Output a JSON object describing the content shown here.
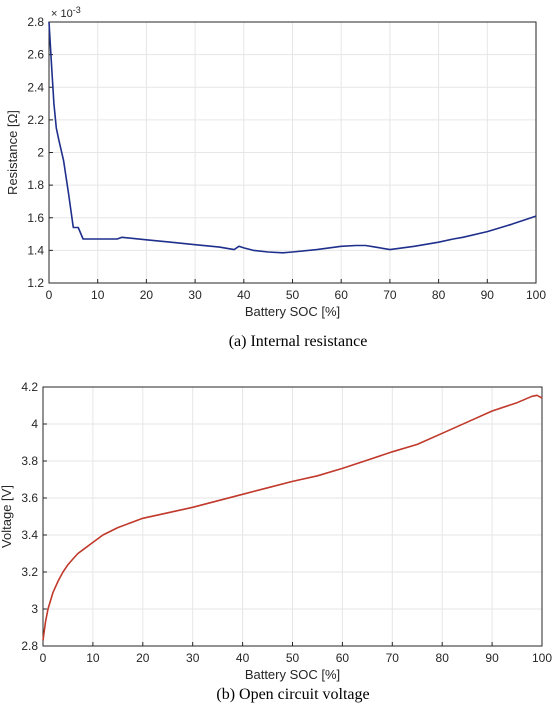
{
  "chart_data": [
    {
      "type": "line",
      "caption": "(a) Internal resistance",
      "xlabel": "Battery SOC [%]",
      "ylabel": "Resistance [Ω]",
      "y_exponent_label": "× 10",
      "y_exponent_power": "-3",
      "xlim": [
        0,
        100
      ],
      "ylim": [
        1.2,
        2.8
      ],
      "x_ticks": [
        0,
        10,
        20,
        30,
        40,
        50,
        60,
        70,
        80,
        90,
        100
      ],
      "y_ticks": [
        1.2,
        1.4,
        1.6,
        1.8,
        2,
        2.2,
        2.4,
        2.6,
        2.8
      ],
      "grid": true,
      "line_color": "#1f2f8c",
      "series": [
        {
          "x": [
            0,
            0.5,
            1,
            1.5,
            2,
            3,
            4,
            5,
            6,
            7,
            10,
            14,
            15,
            20,
            25,
            30,
            35,
            38,
            39,
            40,
            42,
            45,
            48,
            50,
            55,
            60,
            63,
            65,
            67,
            70,
            75,
            80,
            83,
            85,
            90,
            95,
            100
          ],
          "y": [
            2.8,
            2.55,
            2.3,
            2.15,
            2.08,
            1.95,
            1.75,
            1.54,
            1.54,
            1.47,
            1.47,
            1.47,
            1.48,
            1.465,
            1.45,
            1.435,
            1.42,
            1.405,
            1.425,
            1.415,
            1.4,
            1.39,
            1.385,
            1.39,
            1.405,
            1.425,
            1.43,
            1.43,
            1.42,
            1.405,
            1.425,
            1.45,
            1.47,
            1.48,
            1.515,
            1.56,
            1.61
          ]
        }
      ]
    },
    {
      "type": "line",
      "caption": "(b) Open circuit voltage",
      "xlabel": "Battery SOC [%]",
      "ylabel": "Voltage [V]",
      "xlim": [
        0,
        100
      ],
      "ylim": [
        2.8,
        4.2
      ],
      "x_ticks": [
        0,
        10,
        20,
        30,
        40,
        50,
        60,
        70,
        80,
        90,
        100
      ],
      "y_ticks": [
        2.8,
        3,
        3.2,
        3.4,
        3.6,
        3.8,
        4,
        4.2
      ],
      "grid": true,
      "line_color": "#c0392b",
      "series": [
        {
          "x": [
            0,
            0.5,
            1,
            2,
            3,
            4,
            5,
            6,
            7,
            8,
            10,
            12,
            15,
            18,
            20,
            25,
            30,
            35,
            40,
            45,
            50,
            55,
            60,
            65,
            70,
            75,
            80,
            85,
            90,
            95,
            98,
            99,
            100
          ],
          "y": [
            2.83,
            2.93,
            3.0,
            3.09,
            3.15,
            3.2,
            3.24,
            3.27,
            3.3,
            3.32,
            3.36,
            3.4,
            3.44,
            3.47,
            3.49,
            3.52,
            3.55,
            3.585,
            3.62,
            3.655,
            3.69,
            3.72,
            3.76,
            3.805,
            3.85,
            3.89,
            3.95,
            4.01,
            4.07,
            4.115,
            4.15,
            4.155,
            4.14
          ]
        }
      ]
    }
  ]
}
